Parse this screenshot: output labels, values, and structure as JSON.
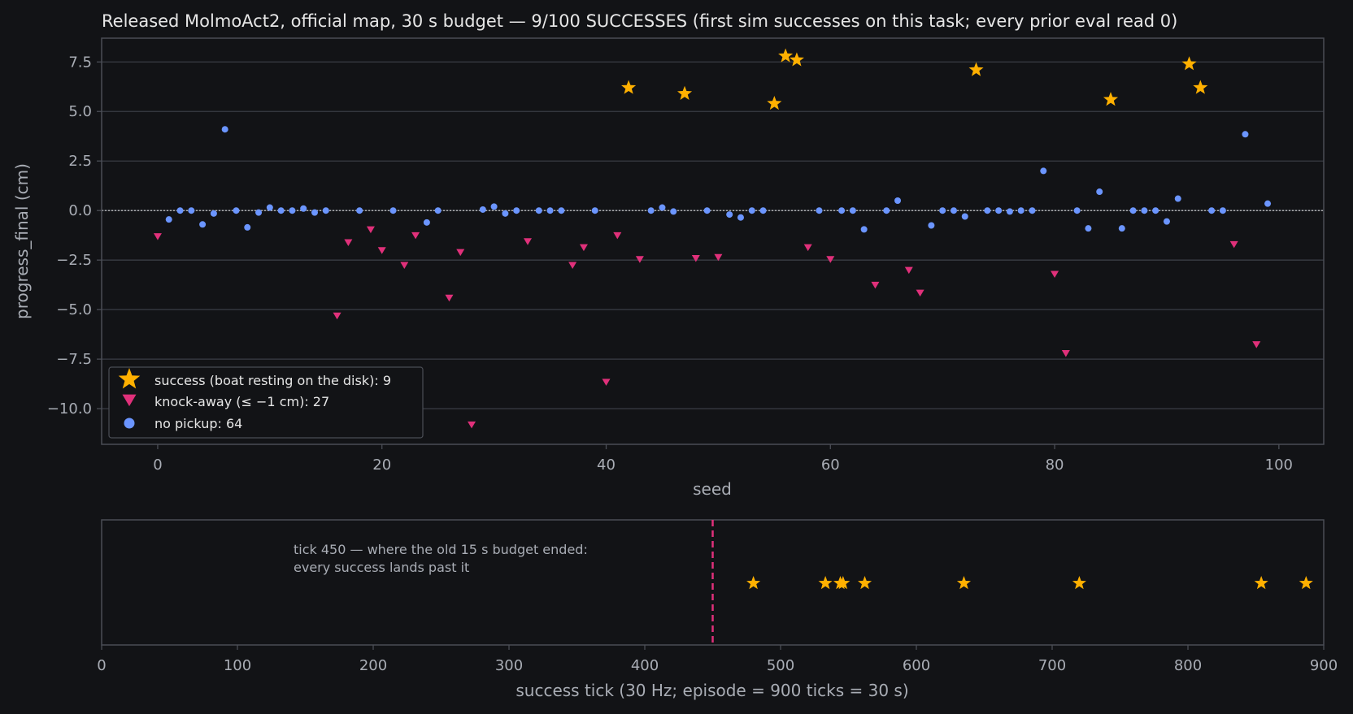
{
  "colors": {
    "background": "#121316",
    "frame": "#4a4d55",
    "grid": "#3a3d45",
    "text": "#e6e6e6",
    "muted": "#a9adb5",
    "success": "#ffb000",
    "knock": "#e0307a",
    "nopickup": "#6b95ff"
  },
  "chart_data": [
    {
      "type": "scatter",
      "title": "Released MolmoAct2, official map, 30 s budget — 9/100 SUCCESSES (first sim successes on this task; every prior eval read 0)",
      "xlabel": "seed",
      "ylabel": "progress_final (cm)",
      "xlim": [
        -5,
        104
      ],
      "ylim": [
        -11.8,
        8.7
      ],
      "xticks": [
        "0",
        "20",
        "40",
        "60",
        "80",
        "100"
      ],
      "yticks": [
        "7.5",
        "5.0",
        "2.5",
        "0.0",
        "−2.5",
        "−5.0",
        "−7.5",
        "−10.0"
      ],
      "grid": true,
      "reference_line_y": 0,
      "legend_position": "lower-left",
      "legend": [
        {
          "label": "success (boat resting on the disk): 9",
          "marker": "star"
        },
        {
          "label": "knock-away (≤ −1 cm): 27",
          "marker": "triangle-down"
        },
        {
          "label": "no pickup: 64",
          "marker": "circle"
        }
      ],
      "series": [
        {
          "marker": "star",
          "points": [
            [
              42,
              6.2
            ],
            [
              47,
              5.9
            ],
            [
              55,
              5.4
            ],
            [
              56,
              7.8
            ],
            [
              57,
              7.6
            ],
            [
              73,
              7.1
            ],
            [
              85,
              5.6
            ],
            [
              92,
              7.4
            ],
            [
              93,
              6.2
            ]
          ]
        },
        {
          "marker": "triangle-down",
          "points": [
            [
              0,
              -1.3
            ],
            [
              16,
              -5.3
            ],
            [
              17,
              -1.6
            ],
            [
              19,
              -0.95
            ],
            [
              20,
              -2.0
            ],
            [
              22,
              -2.75
            ],
            [
              23,
              -1.25
            ],
            [
              26,
              -4.4
            ],
            [
              27,
              -2.1
            ],
            [
              28,
              -10.8
            ],
            [
              33,
              -1.55
            ],
            [
              37,
              -2.75
            ],
            [
              38,
              -1.85
            ],
            [
              40,
              -8.65
            ],
            [
              41,
              -1.25
            ],
            [
              43,
              -2.45
            ],
            [
              48,
              -2.4
            ],
            [
              50,
              -2.35
            ],
            [
              58,
              -1.85
            ],
            [
              60,
              -2.45
            ],
            [
              64,
              -3.75
            ],
            [
              67,
              -3.0
            ],
            [
              68,
              -4.15
            ],
            [
              80,
              -3.2
            ],
            [
              81,
              -7.2
            ],
            [
              96,
              -1.7
            ],
            [
              98,
              -6.75
            ]
          ]
        },
        {
          "marker": "circle",
          "points": [
            [
              1,
              -0.45
            ],
            [
              2,
              0.0
            ],
            [
              3,
              0.0
            ],
            [
              4,
              -0.7
            ],
            [
              5,
              -0.15
            ],
            [
              6,
              4.1
            ],
            [
              7,
              0.0
            ],
            [
              8,
              -0.85
            ],
            [
              9,
              -0.1
            ],
            [
              10,
              0.15
            ],
            [
              11,
              0.0
            ],
            [
              12,
              0.0
            ],
            [
              13,
              0.1
            ],
            [
              14,
              -0.1
            ],
            [
              15,
              0.0
            ],
            [
              18,
              0.0
            ],
            [
              21,
              0.0
            ],
            [
              24,
              -0.6
            ],
            [
              25,
              0.0
            ],
            [
              29,
              0.05
            ],
            [
              30,
              0.2
            ],
            [
              31,
              -0.15
            ],
            [
              32,
              0.0
            ],
            [
              34,
              0.0
            ],
            [
              35,
              0.0
            ],
            [
              36,
              0.0
            ],
            [
              39,
              0.0
            ],
            [
              44,
              0.0
            ],
            [
              45,
              0.15
            ],
            [
              46,
              -0.05
            ],
            [
              49,
              0.0
            ],
            [
              51,
              -0.2
            ],
            [
              52,
              -0.35
            ],
            [
              53,
              0.0
            ],
            [
              54,
              0.0
            ],
            [
              59,
              0.0
            ],
            [
              61,
              0.0
            ],
            [
              62,
              0.0
            ],
            [
              63,
              -0.95
            ],
            [
              65,
              0.0
            ],
            [
              66,
              0.5
            ],
            [
              69,
              -0.75
            ],
            [
              70,
              0.0
            ],
            [
              71,
              0.0
            ],
            [
              72,
              -0.3
            ],
            [
              74,
              0.0
            ],
            [
              75,
              0.0
            ],
            [
              76,
              -0.05
            ],
            [
              77,
              0.0
            ],
            [
              78,
              0.0
            ],
            [
              79,
              2.0
            ],
            [
              82,
              0.0
            ],
            [
              83,
              -0.9
            ],
            [
              84,
              0.95
            ],
            [
              86,
              -0.9
            ],
            [
              87,
              0.0
            ],
            [
              88,
              0.0
            ],
            [
              89,
              0.0
            ],
            [
              90,
              -0.55
            ],
            [
              91,
              0.6
            ],
            [
              94,
              0.0
            ],
            [
              95,
              0.0
            ],
            [
              97,
              3.85
            ],
            [
              99,
              0.35
            ]
          ]
        }
      ]
    },
    {
      "type": "scatter",
      "xlabel": "success tick (30 Hz; episode = 900 ticks = 30 s)",
      "xlim": [
        0,
        900
      ],
      "xticks": [
        "0",
        "100",
        "200",
        "300",
        "400",
        "500",
        "600",
        "700",
        "800",
        "900"
      ],
      "marker": "star",
      "x": [
        480,
        533,
        544,
        546,
        562,
        635,
        720,
        854,
        887
      ],
      "vline_x": 450,
      "annotation": [
        "tick 450 — where the old 15 s budget ended:",
        "every success lands past it"
      ]
    }
  ]
}
